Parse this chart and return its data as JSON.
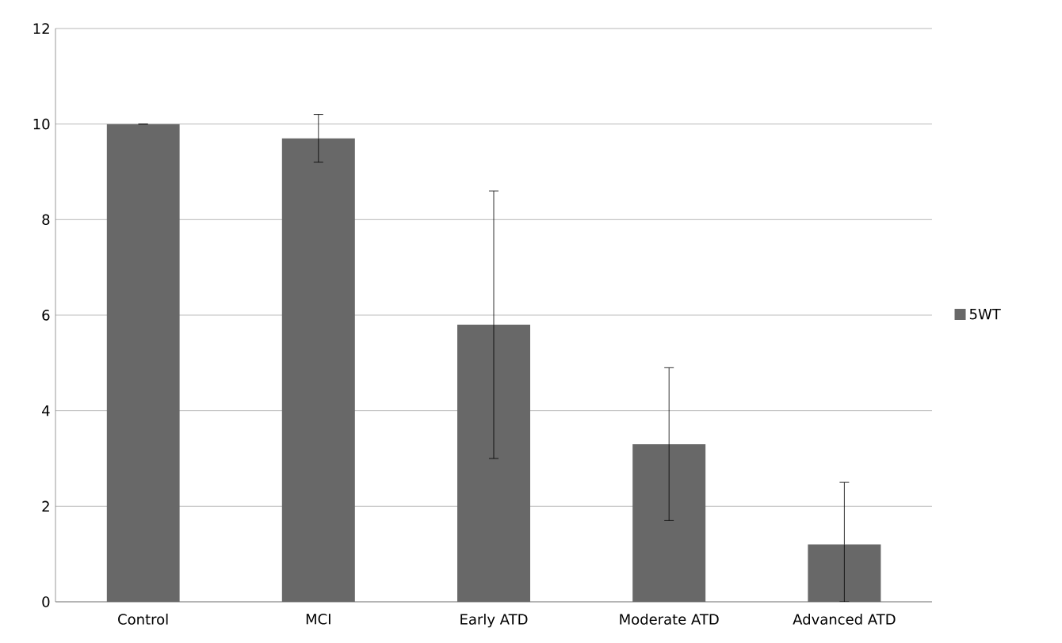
{
  "chart_data": {
    "type": "bar",
    "categories": [
      "Control",
      "MCI",
      "Early ATD",
      "Moderate ATD",
      "Advanced ATD"
    ],
    "series": [
      {
        "name": "5WT",
        "color": "#686868",
        "values": [
          10,
          9.7,
          5.8,
          3.3,
          1.2
        ],
        "errors": [
          0,
          [
            9.2,
            10.2
          ],
          [
            3.0,
            8.6
          ],
          [
            1.7,
            4.9
          ],
          [
            0,
            2.5
          ]
        ]
      }
    ],
    "ylim": [
      0,
      12
    ],
    "yticks": [
      0,
      2,
      4,
      6,
      8,
      10,
      12
    ],
    "grid": "y",
    "legend": "right"
  }
}
